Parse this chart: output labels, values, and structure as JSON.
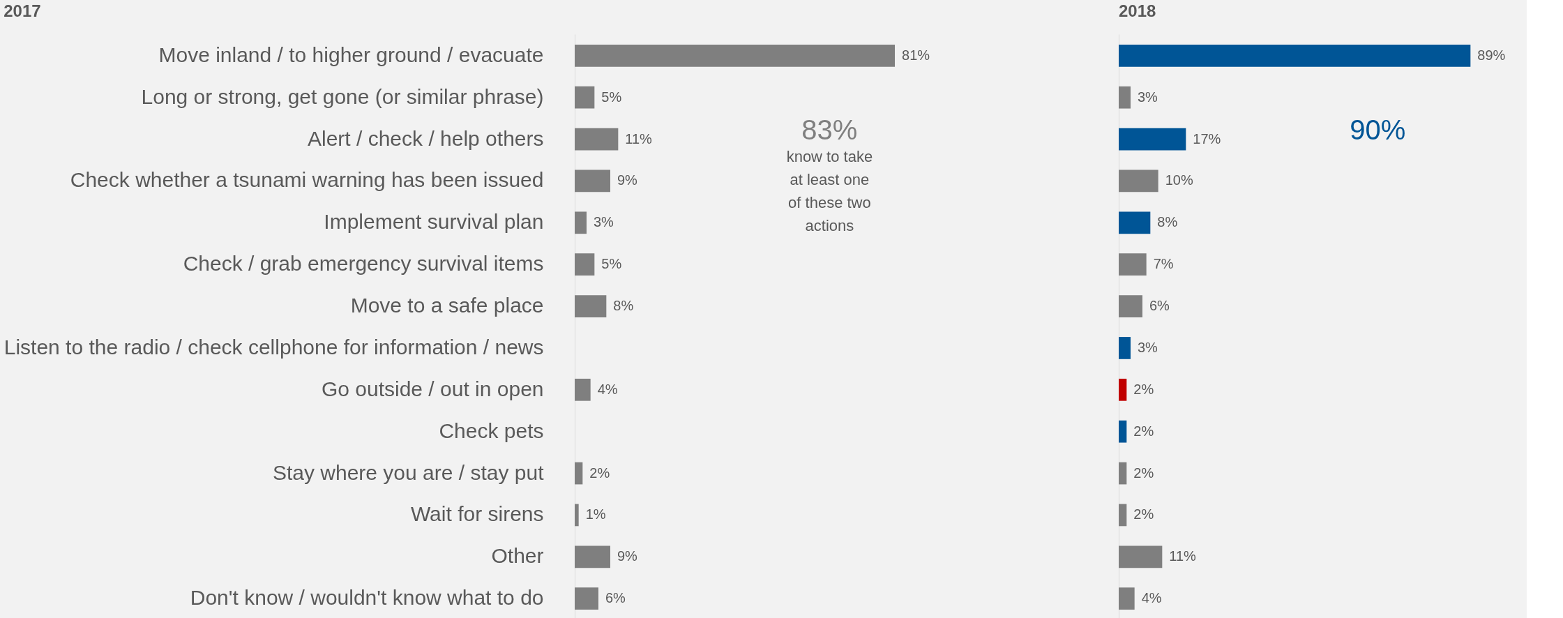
{
  "chart_data": [
    {
      "type": "bar",
      "orientation": "horizontal",
      "title": "2017",
      "categories": [
        "Move inland / to higher ground / evacuate",
        "Long or strong, get gone (or similar phrase)",
        "Alert / check / help others",
        "Check whether a tsunami warning has been issued",
        "Implement survival plan",
        "Check / grab emergency survival items",
        "Move to a safe place",
        "Listen to the radio / check cellphone for information / news",
        "Go outside / out in open",
        "Check pets",
        "Stay where you are / stay put",
        "Wait for sirens",
        "Other",
        "Don't know / wouldn't know what to do"
      ],
      "values": [
        81,
        5,
        11,
        9,
        3,
        5,
        8,
        null,
        4,
        null,
        2,
        1,
        9,
        6
      ],
      "value_labels": [
        "81%",
        "5%",
        "11%",
        "9%",
        "3%",
        "5%",
        "8%",
        null,
        "4%",
        null,
        "2%",
        "1%",
        "9%",
        "6%"
      ],
      "colors": [
        "#7f7f7f",
        "#7f7f7f",
        "#7f7f7f",
        "#7f7f7f",
        "#7f7f7f",
        "#7f7f7f",
        "#7f7f7f",
        "#7f7f7f",
        "#7f7f7f",
        "#7f7f7f",
        "#7f7f7f",
        "#7f7f7f",
        "#7f7f7f",
        "#7f7f7f"
      ],
      "annotations": [
        "83%",
        "know to take at least one of these two actions"
      ]
    },
    {
      "type": "bar",
      "orientation": "horizontal",
      "title": "2018",
      "tick_labels": false,
      "categories": [
        null,
        null,
        null,
        null,
        null,
        null,
        null,
        null,
        null,
        null,
        null,
        null,
        null,
        null
      ],
      "values": [
        89,
        3,
        17,
        10,
        8,
        7,
        6,
        3,
        2,
        2,
        2,
        2,
        11,
        4
      ],
      "value_labels": [
        "89%",
        "3%",
        "17%",
        "10%",
        "8%",
        "7%",
        "6%",
        "3%",
        "2%",
        "2%",
        "2%",
        "2%",
        "11%",
        "4%"
      ],
      "colors": [
        "#005596",
        "#7f7f7f",
        "#005596",
        "#7f7f7f",
        "#005596",
        "#7f7f7f",
        "#7f7f7f",
        "#005596",
        "#c00000",
        "#005596",
        "#7f7f7f",
        "#7f7f7f",
        "#7f7f7f",
        "#7f7f7f"
      ],
      "annotations": [
        "90%"
      ]
    }
  ]
}
